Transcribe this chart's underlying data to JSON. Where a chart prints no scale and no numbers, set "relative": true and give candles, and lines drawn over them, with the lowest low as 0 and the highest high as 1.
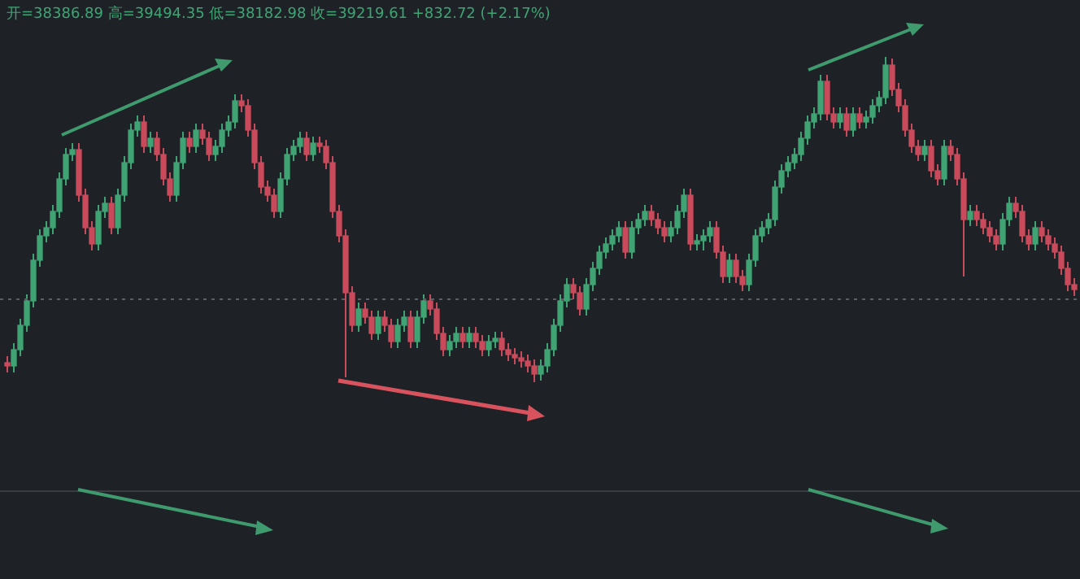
{
  "chart_data": {
    "type": "candlestick",
    "relative": true,
    "tick_labels": false,
    "annotations": [
      "开=38386.89 高=39494.35 低=38182.98 收=39219.61 +832.72 (+2.17%)"
    ],
    "ref_lines": [
      {
        "axis": "y",
        "value": 0.255,
        "color": "#5a5d63",
        "line_style": "dotted"
      }
    ],
    "categories": [
      null,
      null,
      null,
      null,
      null,
      null,
      null,
      null,
      null,
      null,
      null,
      null,
      null,
      null,
      null,
      null,
      null,
      null,
      null,
      null,
      null,
      null,
      null,
      null,
      null,
      null,
      null,
      null,
      null,
      null,
      null,
      null,
      null,
      null,
      null,
      null,
      null,
      null,
      null,
      null,
      null,
      null,
      null,
      null,
      null,
      null,
      null,
      null,
      null,
      null,
      null,
      null,
      null,
      null,
      null,
      null,
      null,
      null,
      null,
      null,
      null,
      null,
      null,
      null,
      null,
      null,
      null,
      null,
      null,
      null,
      null,
      null,
      null,
      null,
      null,
      null,
      null,
      null,
      null,
      null,
      null,
      null,
      null,
      null,
      null,
      null,
      null,
      null,
      null,
      null,
      null,
      null,
      null,
      null,
      null,
      null,
      null,
      null,
      null,
      null,
      null,
      null,
      null,
      null,
      null,
      null,
      null,
      null,
      null,
      null,
      null,
      null,
      null,
      null,
      null,
      null,
      null,
      null,
      null,
      null,
      null,
      null,
      null,
      null,
      null,
      null,
      null,
      null,
      null,
      null,
      null,
      null,
      null,
      null,
      null,
      null,
      null,
      null,
      null,
      null,
      null,
      null,
      null,
      null,
      null,
      null,
      null,
      null,
      null,
      null,
      null,
      null,
      null,
      null,
      null,
      null,
      null,
      null,
      null,
      null,
      null,
      null,
      null,
      null,
      null
    ],
    "ohlc": [
      [
        0.06,
        0.08,
        0.03,
        0.05
      ],
      [
        0.05,
        0.12,
        0.03,
        0.1
      ],
      [
        0.1,
        0.195,
        0.08,
        0.175
      ],
      [
        0.175,
        0.27,
        0.155,
        0.25
      ],
      [
        0.25,
        0.395,
        0.23,
        0.375
      ],
      [
        0.375,
        0.47,
        0.355,
        0.45
      ],
      [
        0.45,
        0.495,
        0.43,
        0.475
      ],
      [
        0.475,
        0.545,
        0.455,
        0.525
      ],
      [
        0.525,
        0.645,
        0.505,
        0.625
      ],
      [
        0.625,
        0.72,
        0.605,
        0.7
      ],
      [
        0.7,
        0.735,
        0.68,
        0.715
      ],
      [
        0.715,
        0.735,
        0.555,
        0.575
      ],
      [
        0.575,
        0.595,
        0.455,
        0.475
      ],
      [
        0.475,
        0.495,
        0.405,
        0.425
      ],
      [
        0.425,
        0.545,
        0.405,
        0.525
      ],
      [
        0.525,
        0.57,
        0.505,
        0.55
      ],
      [
        0.55,
        0.57,
        0.455,
        0.475
      ],
      [
        0.475,
        0.595,
        0.455,
        0.575
      ],
      [
        0.575,
        0.695,
        0.555,
        0.675
      ],
      [
        0.675,
        0.795,
        0.655,
        0.775
      ],
      [
        0.775,
        0.82,
        0.755,
        0.8
      ],
      [
        0.8,
        0.82,
        0.705,
        0.725
      ],
      [
        0.725,
        0.77,
        0.705,
        0.75
      ],
      [
        0.75,
        0.77,
        0.68,
        0.7
      ],
      [
        0.7,
        0.72,
        0.605,
        0.625
      ],
      [
        0.625,
        0.645,
        0.555,
        0.575
      ],
      [
        0.575,
        0.695,
        0.555,
        0.675
      ],
      [
        0.675,
        0.77,
        0.655,
        0.75
      ],
      [
        0.75,
        0.77,
        0.705,
        0.725
      ],
      [
        0.725,
        0.795,
        0.705,
        0.775
      ],
      [
        0.775,
        0.795,
        0.73,
        0.75
      ],
      [
        0.75,
        0.77,
        0.68,
        0.7
      ],
      [
        0.7,
        0.745,
        0.68,
        0.725
      ],
      [
        0.725,
        0.795,
        0.705,
        0.775
      ],
      [
        0.775,
        0.82,
        0.755,
        0.8
      ],
      [
        0.8,
        0.885,
        0.78,
        0.865
      ],
      [
        0.865,
        0.885,
        0.83,
        0.85
      ],
      [
        0.85,
        0.87,
        0.755,
        0.775
      ],
      [
        0.775,
        0.795,
        0.655,
        0.675
      ],
      [
        0.675,
        0.695,
        0.58,
        0.6
      ],
      [
        0.6,
        0.62,
        0.555,
        0.575
      ],
      [
        0.575,
        0.595,
        0.505,
        0.525
      ],
      [
        0.525,
        0.645,
        0.505,
        0.625
      ],
      [
        0.625,
        0.72,
        0.605,
        0.7
      ],
      [
        0.7,
        0.745,
        0.68,
        0.725
      ],
      [
        0.725,
        0.77,
        0.705,
        0.75
      ],
      [
        0.75,
        0.77,
        0.68,
        0.7
      ],
      [
        0.7,
        0.755,
        0.68,
        0.735
      ],
      [
        0.735,
        0.755,
        0.705,
        0.725
      ],
      [
        0.725,
        0.745,
        0.655,
        0.675
      ],
      [
        0.675,
        0.695,
        0.505,
        0.525
      ],
      [
        0.525,
        0.545,
        0.43,
        0.45
      ],
      [
        0.45,
        0.47,
        0.015,
        0.275
      ],
      [
        0.275,
        0.295,
        0.155,
        0.175
      ],
      [
        0.175,
        0.245,
        0.155,
        0.225
      ],
      [
        0.225,
        0.245,
        0.18,
        0.2
      ],
      [
        0.2,
        0.22,
        0.13,
        0.15
      ],
      [
        0.15,
        0.22,
        0.13,
        0.2
      ],
      [
        0.2,
        0.22,
        0.155,
        0.175
      ],
      [
        0.175,
        0.195,
        0.105,
        0.125
      ],
      [
        0.125,
        0.195,
        0.105,
        0.175
      ],
      [
        0.175,
        0.22,
        0.155,
        0.2
      ],
      [
        0.2,
        0.22,
        0.105,
        0.125
      ],
      [
        0.125,
        0.22,
        0.105,
        0.2
      ],
      [
        0.2,
        0.27,
        0.18,
        0.25
      ],
      [
        0.25,
        0.27,
        0.205,
        0.225
      ],
      [
        0.225,
        0.245,
        0.13,
        0.15
      ],
      [
        0.15,
        0.17,
        0.08,
        0.1
      ],
      [
        0.1,
        0.145,
        0.08,
        0.125
      ],
      [
        0.125,
        0.17,
        0.105,
        0.15
      ],
      [
        0.15,
        0.17,
        0.105,
        0.125
      ],
      [
        0.125,
        0.17,
        0.105,
        0.15
      ],
      [
        0.15,
        0.17,
        0.105,
        0.125
      ],
      [
        0.125,
        0.145,
        0.08,
        0.1
      ],
      [
        0.1,
        0.145,
        0.08,
        0.125
      ],
      [
        0.125,
        0.155,
        0.105,
        0.135
      ],
      [
        0.135,
        0.155,
        0.08,
        0.1
      ],
      [
        0.1,
        0.12,
        0.065,
        0.085
      ],
      [
        0.085,
        0.105,
        0.055,
        0.075
      ],
      [
        0.075,
        0.095,
        0.045,
        0.065
      ],
      [
        0.065,
        0.085,
        0.03,
        0.05
      ],
      [
        0.05,
        0.07,
        0,
        0.025
      ],
      [
        0.025,
        0.07,
        0.005,
        0.05
      ],
      [
        0.05,
        0.12,
        0.03,
        0.1
      ],
      [
        0.1,
        0.195,
        0.08,
        0.175
      ],
      [
        0.175,
        0.27,
        0.155,
        0.25
      ],
      [
        0.25,
        0.32,
        0.23,
        0.3
      ],
      [
        0.3,
        0.32,
        0.255,
        0.275
      ],
      [
        0.275,
        0.295,
        0.205,
        0.225
      ],
      [
        0.225,
        0.32,
        0.205,
        0.3
      ],
      [
        0.3,
        0.37,
        0.28,
        0.35
      ],
      [
        0.35,
        0.42,
        0.33,
        0.4
      ],
      [
        0.4,
        0.445,
        0.38,
        0.425
      ],
      [
        0.425,
        0.47,
        0.405,
        0.45
      ],
      [
        0.45,
        0.495,
        0.43,
        0.475
      ],
      [
        0.475,
        0.495,
        0.38,
        0.4
      ],
      [
        0.4,
        0.495,
        0.38,
        0.475
      ],
      [
        0.475,
        0.52,
        0.455,
        0.5
      ],
      [
        0.5,
        0.545,
        0.48,
        0.525
      ],
      [
        0.525,
        0.545,
        0.48,
        0.5
      ],
      [
        0.5,
        0.52,
        0.455,
        0.475
      ],
      [
        0.475,
        0.495,
        0.43,
        0.45
      ],
      [
        0.45,
        0.495,
        0.43,
        0.475
      ],
      [
        0.475,
        0.545,
        0.455,
        0.525
      ],
      [
        0.525,
        0.595,
        0.505,
        0.575
      ],
      [
        0.575,
        0.595,
        0.405,
        0.425
      ],
      [
        0.425,
        0.455,
        0.405,
        0.435
      ],
      [
        0.435,
        0.47,
        0.405,
        0.45
      ],
      [
        0.45,
        0.495,
        0.43,
        0.475
      ],
      [
        0.475,
        0.495,
        0.38,
        0.4
      ],
      [
        0.4,
        0.42,
        0.305,
        0.325
      ],
      [
        0.325,
        0.395,
        0.305,
        0.375
      ],
      [
        0.375,
        0.395,
        0.305,
        0.325
      ],
      [
        0.325,
        0.345,
        0.28,
        0.3
      ],
      [
        0.3,
        0.395,
        0.28,
        0.375
      ],
      [
        0.375,
        0.47,
        0.355,
        0.45
      ],
      [
        0.45,
        0.495,
        0.43,
        0.475
      ],
      [
        0.475,
        0.52,
        0.455,
        0.5
      ],
      [
        0.5,
        0.62,
        0.48,
        0.6
      ],
      [
        0.6,
        0.67,
        0.58,
        0.65
      ],
      [
        0.65,
        0.695,
        0.63,
        0.675
      ],
      [
        0.675,
        0.72,
        0.655,
        0.7
      ],
      [
        0.7,
        0.77,
        0.68,
        0.75
      ],
      [
        0.75,
        0.82,
        0.73,
        0.8
      ],
      [
        0.8,
        0.845,
        0.78,
        0.825
      ],
      [
        0.825,
        0.945,
        0.805,
        0.925
      ],
      [
        0.925,
        0.945,
        0.805,
        0.825
      ],
      [
        0.825,
        0.845,
        0.78,
        0.8
      ],
      [
        0.8,
        0.845,
        0.78,
        0.825
      ],
      [
        0.825,
        0.845,
        0.755,
        0.775
      ],
      [
        0.775,
        0.845,
        0.755,
        0.825
      ],
      [
        0.825,
        0.845,
        0.78,
        0.8
      ],
      [
        0.8,
        0.835,
        0.78,
        0.815
      ],
      [
        0.815,
        0.87,
        0.795,
        0.85
      ],
      [
        0.85,
        0.895,
        0.83,
        0.875
      ],
      [
        0.875,
        1,
        0.855,
        0.975
      ],
      [
        0.975,
        0.995,
        0.88,
        0.9
      ],
      [
        0.9,
        0.92,
        0.83,
        0.85
      ],
      [
        0.85,
        0.87,
        0.755,
        0.775
      ],
      [
        0.775,
        0.795,
        0.705,
        0.725
      ],
      [
        0.725,
        0.745,
        0.68,
        0.7
      ],
      [
        0.7,
        0.745,
        0.68,
        0.725
      ],
      [
        0.725,
        0.745,
        0.63,
        0.65
      ],
      [
        0.65,
        0.67,
        0.605,
        0.625
      ],
      [
        0.625,
        0.745,
        0.605,
        0.725
      ],
      [
        0.725,
        0.745,
        0.68,
        0.7
      ],
      [
        0.7,
        0.72,
        0.605,
        0.625
      ],
      [
        0.625,
        0.645,
        0.325,
        0.5
      ],
      [
        0.5,
        0.545,
        0.48,
        0.525
      ],
      [
        0.525,
        0.545,
        0.48,
        0.5
      ],
      [
        0.5,
        0.52,
        0.455,
        0.475
      ],
      [
        0.475,
        0.495,
        0.43,
        0.45
      ],
      [
        0.45,
        0.47,
        0.405,
        0.425
      ],
      [
        0.425,
        0.52,
        0.405,
        0.5
      ],
      [
        0.5,
        0.57,
        0.48,
        0.55
      ],
      [
        0.55,
        0.57,
        0.505,
        0.525
      ],
      [
        0.525,
        0.545,
        0.43,
        0.45
      ],
      [
        0.45,
        0.47,
        0.405,
        0.425
      ],
      [
        0.425,
        0.495,
        0.405,
        0.475
      ],
      [
        0.475,
        0.495,
        0.43,
        0.45
      ],
      [
        0.45,
        0.47,
        0.405,
        0.425
      ],
      [
        0.425,
        0.445,
        0.38,
        0.4
      ],
      [
        0.4,
        0.42,
        0.33,
        0.35
      ],
      [
        0.35,
        0.37,
        0.28,
        0.3
      ],
      [
        0.3,
        0.32,
        0.265,
        0.285
      ]
    ]
  }
}
